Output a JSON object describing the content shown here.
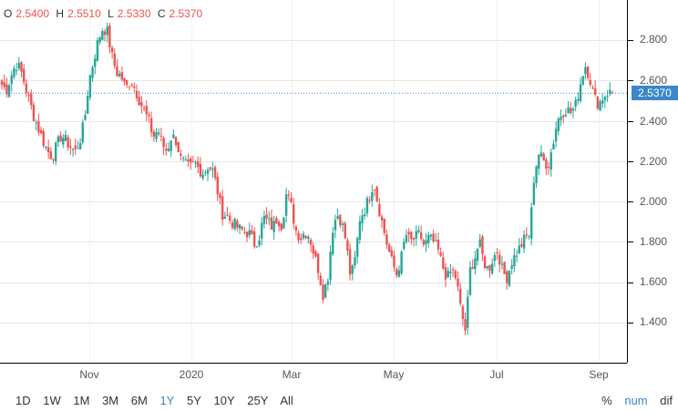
{
  "ohlc_header": {
    "open_label": "O",
    "open": "2.5400",
    "high_label": "H",
    "high": "2.5510",
    "low_label": "L",
    "low": "2.5330",
    "close_label": "C",
    "close": "2.5370"
  },
  "last_price": "2.5370",
  "y_axis": {
    "ticks": [
      "2.800",
      "2.600",
      "2.400",
      "2.200",
      "2.000",
      "1.800",
      "1.600",
      "1.400"
    ]
  },
  "x_axis": {
    "ticks": [
      "Nov",
      "2020",
      "Mar",
      "May",
      "Jul",
      "Sep"
    ]
  },
  "range_buttons": [
    "1D",
    "1W",
    "1M",
    "3M",
    "6M",
    "1Y",
    "5Y",
    "10Y",
    "25Y",
    "All"
  ],
  "active_range": "1Y",
  "mode_buttons": [
    "%",
    "num",
    "dif"
  ],
  "active_mode": "num",
  "colors": {
    "up": "#26a69a",
    "down": "#ef5350",
    "accent": "#3b87c8",
    "grid": "#e6e6e6",
    "axis": "#000000"
  },
  "chart_data": {
    "type": "candlestick",
    "title": "",
    "xlabel": "",
    "ylabel": "",
    "ylim": [
      1.23,
      2.98
    ],
    "grid": true,
    "x_ticks": [
      "Nov",
      "2020",
      "Mar",
      "May",
      "Jul",
      "Sep"
    ],
    "y_ticks": [
      2.8,
      2.6,
      2.4,
      2.2,
      2.0,
      1.8,
      1.6,
      1.4
    ],
    "last": {
      "open": 2.54,
      "high": 2.551,
      "low": 2.533,
      "close": 2.537
    },
    "approx_close_path": [
      2.58,
      2.55,
      2.62,
      2.68,
      2.66,
      2.58,
      2.5,
      2.42,
      2.36,
      2.3,
      2.25,
      2.22,
      2.28,
      2.33,
      2.3,
      2.27,
      2.25,
      2.3,
      2.4,
      2.6,
      2.7,
      2.8,
      2.86,
      2.84,
      2.72,
      2.64,
      2.62,
      2.56,
      2.6,
      2.56,
      2.5,
      2.45,
      2.4,
      2.32,
      2.36,
      2.28,
      2.25,
      2.33,
      2.3,
      2.21,
      2.18,
      2.17,
      2.19,
      2.16,
      2.14,
      2.18,
      2.15,
      2.05,
      1.94,
      1.93,
      1.9,
      1.88,
      1.86,
      1.85,
      1.84,
      1.79,
      1.82,
      1.92,
      1.9,
      1.87,
      1.92,
      1.88,
      2.04,
      1.98,
      1.86,
      1.82,
      1.85,
      1.83,
      1.74,
      1.66,
      1.54,
      1.62,
      1.86,
      1.94,
      1.9,
      1.8,
      1.62,
      1.72,
      1.92,
      1.96,
      2.02,
      2.1,
      1.98,
      1.88,
      1.78,
      1.7,
      1.64,
      1.72,
      1.84,
      1.8,
      1.82,
      1.84,
      1.78,
      1.82,
      1.8,
      1.76,
      1.68,
      1.62,
      1.66,
      1.62,
      1.46,
      1.36,
      1.66,
      1.72,
      1.8,
      1.7,
      1.66,
      1.72,
      1.76,
      1.66,
      1.62,
      1.7,
      1.74,
      1.78,
      1.82,
      1.84,
      2.14,
      2.24,
      2.2,
      2.18,
      2.28,
      2.4,
      2.44,
      2.46,
      2.44,
      2.48,
      2.58,
      2.68,
      2.62,
      2.52,
      2.48,
      2.52,
      2.54,
      2.537
    ]
  }
}
